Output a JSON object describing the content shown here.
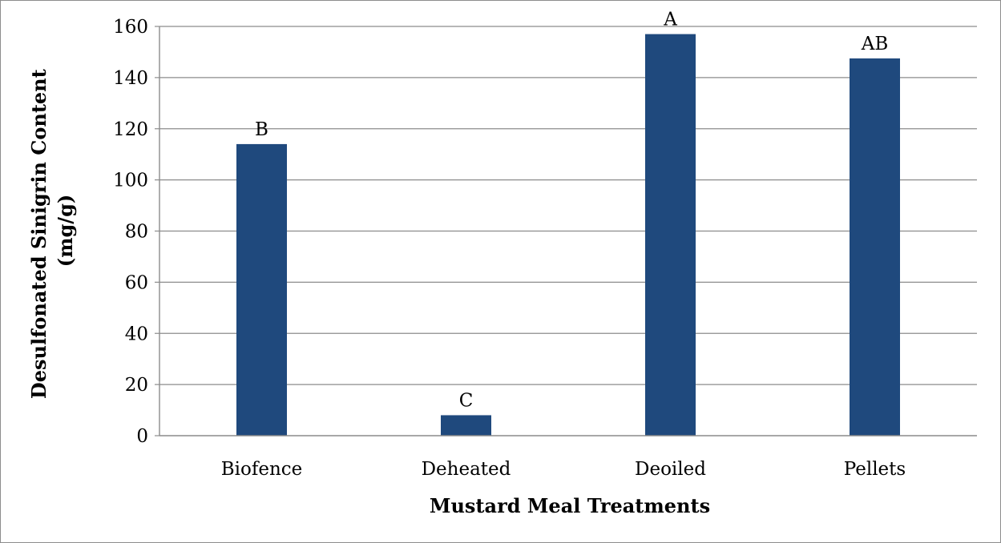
{
  "chart_data": {
    "type": "bar",
    "title": "",
    "xlabel": "Mustard Meal Treatments",
    "ylabel_lines": [
      "Desulfonated Sinigrin Content",
      "(mg/g)"
    ],
    "categories": [
      "Biofence",
      "Deheated",
      "Deoiled",
      "Pellets"
    ],
    "values": [
      114,
      8,
      157,
      147.5
    ],
    "data_labels": [
      "B",
      "C",
      "A",
      "AB"
    ],
    "ylim": [
      0,
      160
    ],
    "yticks": [
      0,
      20,
      40,
      60,
      80,
      100,
      120,
      140,
      160
    ],
    "grid": true,
    "legend": "none",
    "bar_color": "#1f497d",
    "grid_color": "#8c8c8c"
  }
}
